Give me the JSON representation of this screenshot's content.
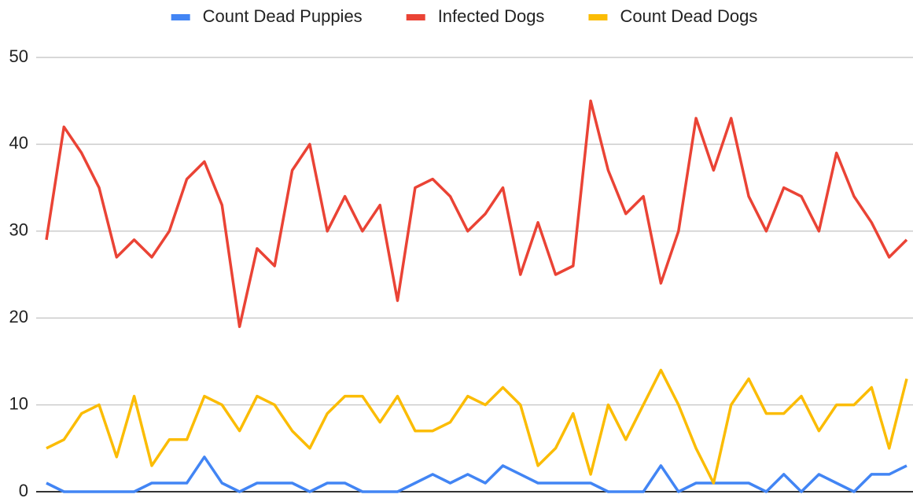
{
  "chart_data": {
    "type": "line",
    "categories": [
      null,
      null,
      null,
      null,
      null,
      null,
      null,
      null,
      null,
      null,
      null,
      null,
      null,
      null,
      null,
      null,
      null,
      null,
      null,
      null,
      null,
      null,
      null,
      null,
      null,
      null,
      null,
      null,
      null,
      null,
      null,
      null,
      null,
      null,
      null,
      null,
      null,
      null,
      null,
      null,
      null,
      null,
      null,
      null,
      null,
      null,
      null,
      null,
      null,
      null
    ],
    "series": [
      {
        "name": "Count Dead Puppies",
        "color": "#4285f4",
        "values": [
          1,
          0,
          0,
          0,
          0,
          0,
          1,
          1,
          1,
          4,
          1,
          0,
          1,
          1,
          1,
          0,
          1,
          1,
          0,
          0,
          0,
          1,
          2,
          1,
          2,
          1,
          3,
          2,
          1,
          1,
          1,
          1,
          0,
          0,
          0,
          3,
          0,
          1,
          1,
          1,
          1,
          0,
          2,
          0,
          2,
          1,
          0,
          2,
          2,
          3
        ]
      },
      {
        "name": "Infected Dogs",
        "color": "#ea4335",
        "values": [
          29,
          42,
          39,
          35,
          27,
          29,
          27,
          30,
          36,
          38,
          33,
          19,
          28,
          26,
          37,
          40,
          30,
          34,
          30,
          33,
          22,
          35,
          36,
          34,
          30,
          32,
          35,
          25,
          31,
          25,
          26,
          45,
          37,
          32,
          34,
          24,
          30,
          43,
          37,
          43,
          34,
          30,
          35,
          34,
          30,
          39,
          34,
          31,
          27,
          29
        ]
      },
      {
        "name": "Count Dead Dogs",
        "color": "#fbbc04",
        "values": [
          5,
          6,
          9,
          10,
          4,
          11,
          3,
          6,
          6,
          11,
          10,
          7,
          11,
          10,
          7,
          5,
          9,
          11,
          11,
          8,
          11,
          7,
          7,
          8,
          11,
          10,
          12,
          10,
          3,
          5,
          9,
          2,
          10,
          6,
          10,
          14,
          10,
          5,
          1,
          10,
          13,
          9,
          9,
          11,
          7,
          10,
          10,
          12,
          5,
          13
        ]
      }
    ],
    "ylim": [
      0,
      50
    ],
    "yticks": [
      0,
      10,
      20,
      30,
      40,
      50
    ],
    "grid": true,
    "legend": "top"
  }
}
